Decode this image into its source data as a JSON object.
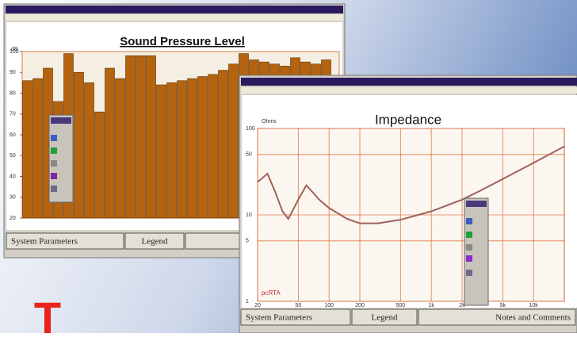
{
  "chart_data": [
    {
      "type": "bar",
      "title": "Sound Pressure Level",
      "ylabel": "dB",
      "color": "#b5630f",
      "values": [
        86,
        87,
        92,
        76,
        99,
        90,
        85,
        71,
        92,
        87,
        98,
        98,
        98,
        84,
        85,
        86,
        87,
        88,
        89,
        91,
        94,
        99,
        96,
        95,
        94,
        93,
        97,
        95,
        94,
        96
      ],
      "ylim": [
        20,
        100
      ],
      "yticks": [
        20,
        30,
        40,
        50,
        60,
        70,
        80,
        90,
        100
      ],
      "grid": false
    },
    {
      "type": "line",
      "title": "Impedance",
      "ylabel": "Ohms",
      "log_x": true,
      "log_y": true,
      "grid": true,
      "x": [
        20,
        25,
        30,
        35,
        40,
        50,
        60,
        70,
        80,
        100,
        150,
        200,
        300,
        500,
        700,
        1000,
        2000,
        3000,
        5000,
        10000,
        20000
      ],
      "series": [
        {
          "name": "Impedance",
          "color": "#a0605a",
          "values": [
            24,
            30,
            18,
            11,
            9,
            15,
            22,
            18,
            15,
            12,
            9,
            8,
            8,
            8.8,
            9.8,
            11,
            15,
            19,
            26,
            40,
            62
          ]
        }
      ],
      "xlim": [
        20,
        20000
      ],
      "xticks": [
        20,
        50,
        100,
        200,
        500,
        {
          "value": 1000,
          "label": "1k"
        },
        {
          "value": 2000,
          "label": "2k"
        },
        {
          "value": 5000,
          "label": "5k"
        },
        {
          "value": 10000,
          "label": "10k"
        }
      ],
      "ylim": [
        1,
        100
      ],
      "yticks": [
        1,
        5,
        10,
        50,
        100
      ]
    }
  ],
  "ui": {
    "left_tabs": [
      "System Parameters",
      "Legend"
    ],
    "right_tabs": [
      "System Parameters",
      "Legend",
      "Notes and Comments"
    ],
    "watermark": "pcRTA",
    "drop_cap": "T"
  }
}
